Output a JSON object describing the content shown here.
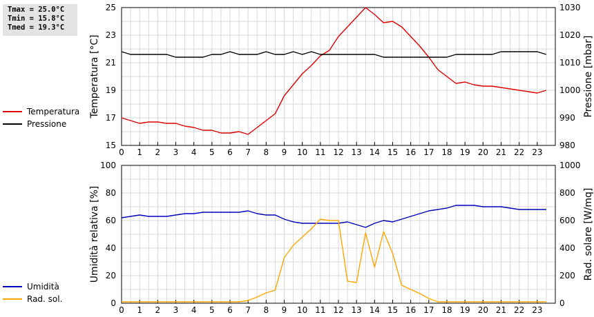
{
  "stats": {
    "tmax": "Tmax = 25.0°C",
    "tmin": "Tmin = 15.8°C",
    "tmed": "Tmed = 19.3°C"
  },
  "legend_top": [
    {
      "label": "Temperatura",
      "color": "#dd0000"
    },
    {
      "label": "Pressione",
      "color": "#000000"
    }
  ],
  "legend_bottom": [
    {
      "label": "Umidità",
      "color": "#0000bb"
    },
    {
      "label": "Rad. sol.",
      "color": "#ffa500"
    }
  ],
  "chart_data": [
    {
      "type": "line",
      "ylabel_left": "Temperatura [°C]",
      "ylabel_right": "Pressione [mbar]",
      "xlim": [
        0,
        24
      ],
      "ylim_left": [
        15,
        25
      ],
      "ylim_right": [
        980,
        1030
      ],
      "xticks": [
        0,
        1,
        2,
        3,
        4,
        5,
        6,
        7,
        8,
        9,
        10,
        11,
        12,
        13,
        14,
        15,
        16,
        17,
        18,
        19,
        20,
        21,
        22,
        23
      ],
      "yticks_left": [
        15,
        17,
        19,
        21,
        23,
        25
      ],
      "yticks_right": [
        980,
        990,
        1000,
        1010,
        1020,
        1030
      ],
      "grid": true,
      "series": [
        {
          "name": "Temperatura",
          "axis": "left",
          "color": "#dd0000",
          "x": [
            0,
            0.5,
            1,
            1.5,
            2,
            2.5,
            3,
            3.5,
            4,
            4.5,
            5,
            5.5,
            6,
            6.5,
            7,
            7.5,
            8,
            8.5,
            9,
            9.5,
            10,
            10.5,
            11,
            11.5,
            12,
            12.5,
            13,
            13.5,
            14,
            14.5,
            15,
            15.5,
            16,
            16.5,
            17,
            17.5,
            18,
            18.5,
            19,
            19.5,
            20,
            20.5,
            21,
            21.5,
            22,
            22.5,
            23,
            23.5
          ],
          "y": [
            17.0,
            16.8,
            16.6,
            16.7,
            16.7,
            16.6,
            16.6,
            16.4,
            16.3,
            16.1,
            16.1,
            15.9,
            15.9,
            16.0,
            15.8,
            16.3,
            16.8,
            17.3,
            18.6,
            19.4,
            20.2,
            20.8,
            21.5,
            21.9,
            22.9,
            23.6,
            24.3,
            25.0,
            24.5,
            23.9,
            24.0,
            23.6,
            22.9,
            22.2,
            21.4,
            20.5,
            20.0,
            19.5,
            19.6,
            19.4,
            19.3,
            19.3,
            19.2,
            19.1,
            19.0,
            18.9,
            18.8,
            19.0
          ]
        },
        {
          "name": "Pressione",
          "axis": "right",
          "color": "#000000",
          "x": [
            0,
            0.5,
            1,
            1.5,
            2,
            2.5,
            3,
            3.5,
            4,
            4.5,
            5,
            5.5,
            6,
            6.5,
            7,
            7.5,
            8,
            8.5,
            9,
            9.5,
            10,
            10.5,
            11,
            11.5,
            12,
            12.5,
            13,
            13.5,
            14,
            14.5,
            15,
            15.5,
            16,
            16.5,
            17,
            17.5,
            18,
            18.5,
            19,
            19.5,
            20,
            20.5,
            21,
            21.5,
            22,
            22.5,
            23,
            23.5
          ],
          "y": [
            1014,
            1013,
            1013,
            1013,
            1013,
            1013,
            1012,
            1012,
            1012,
            1012,
            1013,
            1013,
            1014,
            1013,
            1013,
            1013,
            1014,
            1013,
            1013,
            1014,
            1013,
            1014,
            1013,
            1013,
            1013,
            1013,
            1013,
            1013,
            1013,
            1012,
            1012,
            1012,
            1012,
            1012,
            1012,
            1012,
            1012,
            1013,
            1013,
            1013,
            1013,
            1013,
            1014,
            1014,
            1014,
            1014,
            1014,
            1013
          ]
        }
      ]
    },
    {
      "type": "line",
      "ylabel_left": "Umidità relativa [%]",
      "ylabel_right": "Rad. solare [W/mq]",
      "xlim": [
        0,
        24
      ],
      "ylim_left": [
        0,
        100
      ],
      "ylim_right": [
        0,
        1000
      ],
      "xticks": [
        0,
        1,
        2,
        3,
        4,
        5,
        6,
        7,
        8,
        9,
        10,
        11,
        12,
        13,
        14,
        15,
        16,
        17,
        18,
        19,
        20,
        21,
        22,
        23
      ],
      "yticks_left": [
        0,
        20,
        40,
        60,
        80,
        100
      ],
      "yticks_right": [
        0,
        200,
        400,
        600,
        800,
        1000
      ],
      "grid": true,
      "series": [
        {
          "name": "Umidità",
          "axis": "left",
          "color": "#0000bb",
          "x": [
            0,
            0.5,
            1,
            1.5,
            2,
            2.5,
            3,
            3.5,
            4,
            4.5,
            5,
            5.5,
            6,
            6.5,
            7,
            7.5,
            8,
            8.5,
            9,
            9.5,
            10,
            10.5,
            11,
            11.5,
            12,
            12.5,
            13,
            13.5,
            14,
            14.5,
            15,
            15.5,
            16,
            16.5,
            17,
            17.5,
            18,
            18.5,
            19,
            19.5,
            20,
            20.5,
            21,
            21.5,
            22,
            22.5,
            23,
            23.5
          ],
          "y": [
            62,
            63,
            64,
            63,
            63,
            63,
            64,
            65,
            65,
            66,
            66,
            66,
            66,
            66,
            67,
            65,
            64,
            64,
            61,
            59,
            58,
            58,
            58,
            58,
            58,
            59,
            57,
            55,
            58,
            60,
            59,
            61,
            63,
            65,
            67,
            68,
            69,
            71,
            71,
            71,
            70,
            70,
            70,
            69,
            68,
            68,
            68,
            68
          ]
        },
        {
          "name": "Rad. sol.",
          "axis": "right",
          "color": "#ffa500",
          "x": [
            0,
            1,
            2,
            3,
            4,
            5,
            6,
            6.5,
            7,
            7.5,
            8,
            8.5,
            9,
            9.5,
            10,
            10.5,
            11,
            11.5,
            12,
            12.5,
            13,
            13.5,
            14,
            14.5,
            15,
            15.5,
            16,
            16.5,
            17,
            17.5,
            18,
            19,
            20,
            21,
            22,
            23,
            23.5
          ],
          "y": [
            10,
            10,
            10,
            10,
            10,
            10,
            10,
            10,
            20,
            45,
            75,
            95,
            330,
            420,
            480,
            540,
            610,
            600,
            600,
            160,
            150,
            510,
            260,
            520,
            360,
            130,
            100,
            70,
            35,
            10,
            10,
            10,
            10,
            10,
            10,
            10,
            10
          ]
        }
      ]
    }
  ]
}
